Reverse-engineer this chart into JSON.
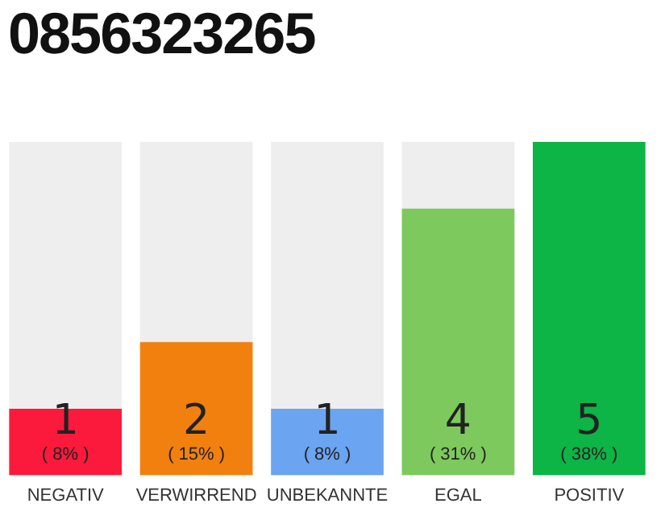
{
  "chart_data": {
    "type": "bar",
    "title": "0856323265",
    "categories": [
      "NEGATIV",
      "VERWIRREND",
      "UNBEKANNTE",
      "EGAL",
      "POSITIV"
    ],
    "values": [
      1,
      2,
      1,
      4,
      5
    ],
    "colors": [
      "#fb1a3c",
      "#f2800e",
      "#6ba4f0",
      "#7dc95e",
      "#0db446"
    ],
    "value_labels": [
      "1\n( 8% )",
      "2\n( 15% )",
      "1\n( 8% )",
      "4\n( 31% )",
      "5\n( 38% )"
    ],
    "ylim": [
      0,
      5
    ]
  }
}
